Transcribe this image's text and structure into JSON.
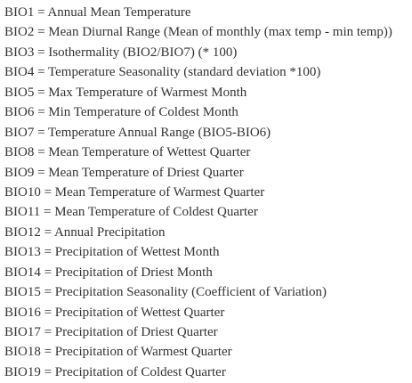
{
  "bioclim_variables": [
    "BIO1 = Annual Mean Temperature",
    "BIO2 = Mean Diurnal Range (Mean of monthly (max temp - min temp))",
    "BIO3 = Isothermality (BIO2/BIO7) (* 100)",
    "BIO4 = Temperature Seasonality (standard deviation *100)",
    "BIO5 = Max Temperature of Warmest Month",
    "BIO6 = Min Temperature of Coldest Month",
    "BIO7 = Temperature Annual Range (BIO5-BIO6)",
    "BIO8 = Mean Temperature of Wettest Quarter",
    "BIO9 = Mean Temperature of Driest Quarter",
    "BIO10 = Mean Temperature of Warmest Quarter",
    "BIO11 = Mean Temperature of Coldest Quarter",
    "BIO12 = Annual Precipitation",
    "BIO13 = Precipitation of Wettest Month",
    "BIO14 = Precipitation of Driest Month",
    "BIO15 = Precipitation Seasonality (Coefficient of Variation)",
    "BIO16 = Precipitation of Wettest Quarter",
    "BIO17 = Precipitation of Driest Quarter",
    "BIO18 = Precipitation of Warmest Quarter",
    "BIO19 = Precipitation of Coldest Quarter"
  ],
  "colors": {
    "text": "#333333",
    "background": "#ffffff"
  }
}
